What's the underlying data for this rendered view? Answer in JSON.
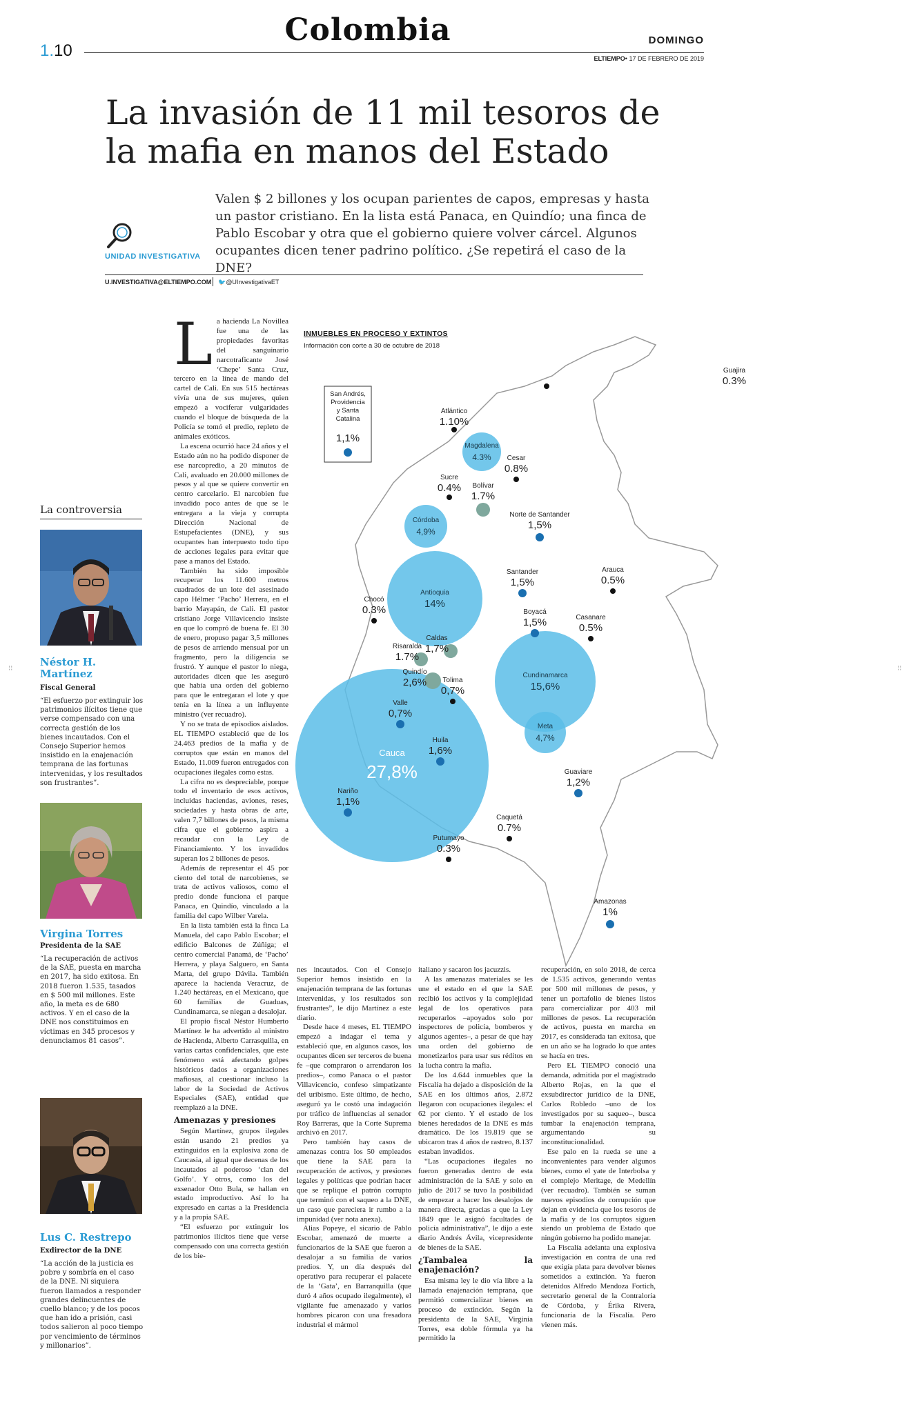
{
  "header": {
    "section": "Colombia",
    "page_section": "1.",
    "page_number": "10",
    "day": "DOMINGO",
    "newspaper": "ELTIEMPO",
    "date": "• 17 DE FEBRERO DE 2019"
  },
  "article": {
    "headline": "La invasión de 11 mil tesoros de la mafia en manos del Estado",
    "deck": "Valen $ 2 billones y los ocupan parientes de capos, empresas y hasta un pastor cristiano. En la lista está Panaca, en Quindío; una finca de Pablo Escobar y otra que el gobierno quiere volver cárcel. Algunos ocupantes dicen tener padrino político. ¿Se repetirá el caso de la DNE?",
    "unit_label": "UNIDAD INVESTIGATIVA",
    "email": "U.INVESTIGATIVA@ELTIEMPO.COM",
    "twitter": "@UInvestigativaET"
  },
  "sidebar": {
    "title": "La controversia",
    "people": [
      {
        "name": "Néstor H. Martínez",
        "role": "Fiscal General",
        "quote": "“El esfuerzo por extinguir los patrimonios ilícitos tiene que verse compensado con una correcta gestión de los bienes incautados. Con el Consejo Superior hemos insistido en la enajenación temprana de las fortunas intervenidas, y los resultados son frustrantes”."
      },
      {
        "name": "Virgina Torres",
        "role": "Presidenta de la SAE",
        "quote": "“La recuperación de activos de la SAE, puesta en marcha en 2017, ha sido exitosa. En 2018 fueron 1.535, tasados en $ 500 mil millones. Este año, la meta es de 680 activos. Y en el caso de la DNE nos constituimos en víctimas en 345 procesos y denunciamos 81 casos”."
      },
      {
        "name": "Lus C. Restrepo",
        "role": "Exdirector de la DNE",
        "quote": "“La acción de la justicia es pobre y sombría en el caso de la DNE. Ni siquiera fueron llamados a responder grandes delincuentes de cuello blanco; y de los pocos que han ido a prisión, casi todos salieron al poco tiempo por vencimiento de términos y millonarios”."
      }
    ]
  },
  "body": {
    "dropcap": "L",
    "col1": [
      "a hacienda La Novillea fue una de las propiedades favoritas del sanguinario narcotraficante José ‘Chepe’ Santa Cruz, tercero en la línea de mando del cartel de Cali. En sus 515 hectáreas vivía una de sus mujeres, quien empezó a vociferar vulgaridades cuando el bloque de búsqueda de la Policía se tomó el predio, repleto de animales exóticos.",
      "La escena ocurrió hace 24 años y el Estado aún no ha podido disponer de ese narcopredio, a 20 minutos de Cali, avaluado en 20.000 millones de pesos y al que se quiere convertir en centro carcelario. El narcobien fue invadido poco antes de que se le entregara a la vieja y corrupta Dirección Nacional de Estupefacientes (DNE), y sus ocupantes han interpuesto todo tipo de acciones legales para evitar que pase a manos del Estado.",
      "También ha sido imposible recuperar los 11.600 metros cuadrados de un lote del asesinado capo Hélmer ‘Pacho’ Herrera, en el barrio Mayapán, de Cali. El pastor cristiano Jorge Villavicencio insiste en que lo compró de buena fe. El 30 de enero, propuso pagar 3,5 millones de pesos de arriendo mensual por un fragmento, pero la diligencia se frustró. Y aunque el pastor lo niega, autoridades dicen que les aseguró que había una orden del gobierno para que le entregaran el lote y que tenía en la línea a un influyente ministro (ver recuadro).",
      "Y no se trata de episodios aislados. EL TIEMPO estableció que de los 24.463 predios de la mafia y de corruptos que están en manos del Estado, 11.009 fueron entregados con ocupaciones ilegales como estas.",
      "La cifra no es despreciable, porque todo el inventario de esos activos, incluidas haciendas, aviones, reses, sociedades y hasta obras de arte, valen 7,7 billones de pesos, la misma cifra que el gobierno aspira a recaudar con la Ley de Financiamiento. Y los invadidos superan los 2 billones de pesos.",
      "Además de representar el 45 por ciento del total de narcobienes, se trata de activos valiosos, como el predio donde funciona el parque Panaca, en Quindío, vinculado a la familia del capo Wilber Varela.",
      "En la lista también está la finca La Manuela, del capo Pablo Escobar; el edificio Balcones de Zúñiga; el centro comercial Panamá, de ‘Pacho’ Herrera, y playa Salguero, en Santa Marta, del grupo Dávila. También aparece la hacienda Veracruz, de 1.240 hectáreas, en el Mexicano, que 60 familias de Guaduas, Cundinamarca, se niegan a desalojar.",
      "El propio fiscal Néstor Humberto Martínez le ha advertido al ministro de Hacienda, Alberto Carrasquilla, en varias cartas confidenciales, que este fenómeno está afectando golpes históricos dados a organizaciones mafiosas, al cuestionar incluso la labor de la Sociedad de Activos Especiales (SAE), entidad que reemplazó a la DNE."
    ],
    "col1_subhead": "Amenazas y presiones",
    "col1_after": [
      "Según Martínez, grupos ilegales están usando 21 predios ya extinguidos en la explosiva zona de Caucasia, al igual que decenas de los incautados al poderoso ‘clan del Golfo’. Y otros, como los del exsenador Otto Bula, se hallan en estado improductivo. Así lo ha expresado en cartas a la Presidencia y a la propia SAE.",
      "“El esfuerzo por extinguir los patrimonios ilícitos tiene que verse compensado con una correcta gestión de los bie-"
    ],
    "col2": [
      "nes incautados. Con el Consejo Superior hemos insistido en la enajenación temprana de las fortunas intervenidas, y los resultados son frustrantes”, le dijo Martínez a este diario.",
      "Desde hace 4 meses, EL TIEMPO empezó a indagar el tema y estableció que, en algunos casos, los ocupantes dicen ser terceros de buena fe –que compraron o arrendaron los predios–, como Panaca o el pastor Villavicencio, confeso simpatizante del uribismo. Este último, de hecho, aseguró ya le costó una indagación por tráfico de influencias al senador Roy Barreras, que la Corte Suprema archivó en 2017.",
      "Pero también hay casos de amenazas contra los 50 empleados que tiene la SAE para la recuperación de activos, y presiones legales y políticas que podrían hacer que se replique el patrón corrupto que terminó con el saqueo a la DNE, un caso que pareciera ir rumbo a la impunidad (ver nota anexa).",
      "Alias Popeye, el sicario de Pablo Escobar, amenazó de muerte a funcionarios de la SAE que fueron a desalojar a su familia de varios predios. Y, un día después del operativo para recuperar el palacete de la ‘Gata’, en Barranquilla (que duró 4 años ocupado ilegalmente), el vigilante fue amenazado y varios hombres picaron con una fresadora industrial el mármol"
    ],
    "col3": [
      "italiano y sacaron los jacuzzis.",
      "A las amenazas materiales se les une el estado en el que la SAE recibió los activos y la complejidad legal de los operativos para recuperarlos –apoyados solo por inspectores de policía, bomberos y algunos agentes–, a pesar de que hay una orden del gobierno de monetizarlos para usar sus réditos en la lucha contra la mafia.",
      "De los 4.644 inmuebles que la Fiscalía ha dejado a disposición de la SAE en los últimos años, 2.872 llegaron con ocupaciones ilegales: el 62 por ciento. Y el estado de los bienes heredados de la DNE es más dramático. De los 19.819 que se ubicaron tras 4 años de rastreo, 8.137 estaban invadidos.",
      "“Las ocupaciones ilegales no fueron generadas dentro de esta administración de la SAE y solo en julio de 2017 se tuvo la posibilidad de empezar a hacer los desalojos de manera directa, gracias a que la Ley 1849 que le asignó facultades de policía administrativa”, le dijo a este diario Andrés Ávila, vicepresidente de bienes de la SAE."
    ],
    "col3_subhead": "¿Tambalea la enajenación?",
    "col3_after": [
      "Esa misma ley le dio vía libre a la llamada enajenación temprana, que permitió comercializar bienes en proceso de extinción. Según la presidenta de la SAE, Virginia Torres, esa doble fórmula ya ha permitido la"
    ],
    "col4": [
      "recuperación, en solo 2018, de cerca de 1.535 activos, generando ventas por 500 mil millones de pesos, y tener un portafolio de bienes listos para comercializar por 403 mil millones de pesos. La recuperación de activos, puesta en marcha en 2017, es considerada tan exitosa, que en un año se ha logrado lo que antes se hacía en tres.",
      "Pero EL TIEMPO conoció una demanda, admitida por el magistrado Alberto Rojas, en la que el exsubdirector jurídico de la DNE, Carlos Robledo –uno de los investigados por su saqueo–, busca tumbar la enajenación temprana, argumentando su inconstitucionalidad.",
      "Ese palo en la rueda se une a inconvenientes para vender algunos bienes, como el yate de Interbolsa y el complejo Meritage, de Medellín (ver recuadro). También se suman nuevos episodios de corrupción que dejan en evidencia que los tesoros de la mafia y de los corruptos siguen siendo un problema de Estado que ningún gobierno ha podido manejar.",
      "La Fiscalía adelanta una explosiva investigación en contra de una red que exigía plata para devolver bienes sometidos a extinción. Ya fueron detenidos Alfredo Mendoza Fortich, secretario general de la Contraloría de Córdoba, y Érika Rivera, funcionaria de la Fiscalía. Pero vienen más."
    ]
  },
  "chart_data": {
    "type": "bubble-map",
    "title": "INMUEBLES EN PROCESO Y EXTINTOS",
    "subtitle": "Información con corte a 30 de octubre de 2018",
    "colors": {
      "blue": "#5bbde8",
      "teal": "#7fa89d",
      "dark": "#111111"
    },
    "departments": [
      {
        "name": "San Andrés, Providencia y Santa Catalina",
        "label": "1,1%",
        "value": 1.1
      },
      {
        "name": "Guajira",
        "label": "0.3%",
        "value": 0.3
      },
      {
        "name": "Atlántico",
        "label": "1.10%",
        "value": 1.1
      },
      {
        "name": "Magdalena",
        "label": "4.3%",
        "value": 4.3
      },
      {
        "name": "Cesar",
        "label": "0.8%",
        "value": 0.8
      },
      {
        "name": "Sucre",
        "label": "0.4%",
        "value": 0.4
      },
      {
        "name": "Bolívar",
        "label": "1.7%",
        "value": 1.7
      },
      {
        "name": "Norte de Santander",
        "label": "1,5%",
        "value": 1.5
      },
      {
        "name": "Córdoba",
        "label": "4,9%",
        "value": 4.9
      },
      {
        "name": "Antioquia",
        "label": "14%",
        "value": 14
      },
      {
        "name": "Santander",
        "label": "1,5%",
        "value": 1.5
      },
      {
        "name": "Arauca",
        "label": "0.5%",
        "value": 0.5
      },
      {
        "name": "Chocó",
        "label": "0.3%",
        "value": 0.3
      },
      {
        "name": "Boyacá",
        "label": "1,5%",
        "value": 1.5
      },
      {
        "name": "Casanare",
        "label": "0.5%",
        "value": 0.5
      },
      {
        "name": "Risaralda",
        "label": "1.7%",
        "value": 1.7
      },
      {
        "name": "Caldas",
        "label": "1,7%",
        "value": 1.7
      },
      {
        "name": "Cundinamarca",
        "label": "15,6%",
        "value": 15.6
      },
      {
        "name": "Quindío",
        "label": "2,6%",
        "value": 2.6
      },
      {
        "name": "Tolima",
        "label": "0,7%",
        "value": 0.7
      },
      {
        "name": "Valle",
        "label": "0,7%",
        "value": 0.7
      },
      {
        "name": "Meta",
        "label": "4,7%",
        "value": 4.7
      },
      {
        "name": "Huila",
        "label": "1,6%",
        "value": 1.6
      },
      {
        "name": "Guaviare",
        "label": "1,2%",
        "value": 1.2
      },
      {
        "name": "Cauca",
        "label": "27,8%",
        "value": 27.8
      },
      {
        "name": "Nariño",
        "label": "1,1%",
        "value": 1.1
      },
      {
        "name": "Caquetá",
        "label": "0.7%",
        "value": 0.7
      },
      {
        "name": "Putumayo",
        "label": "0.3%",
        "value": 0.3
      },
      {
        "name": "Amazonas",
        "label": "1%",
        "value": 1
      }
    ]
  }
}
